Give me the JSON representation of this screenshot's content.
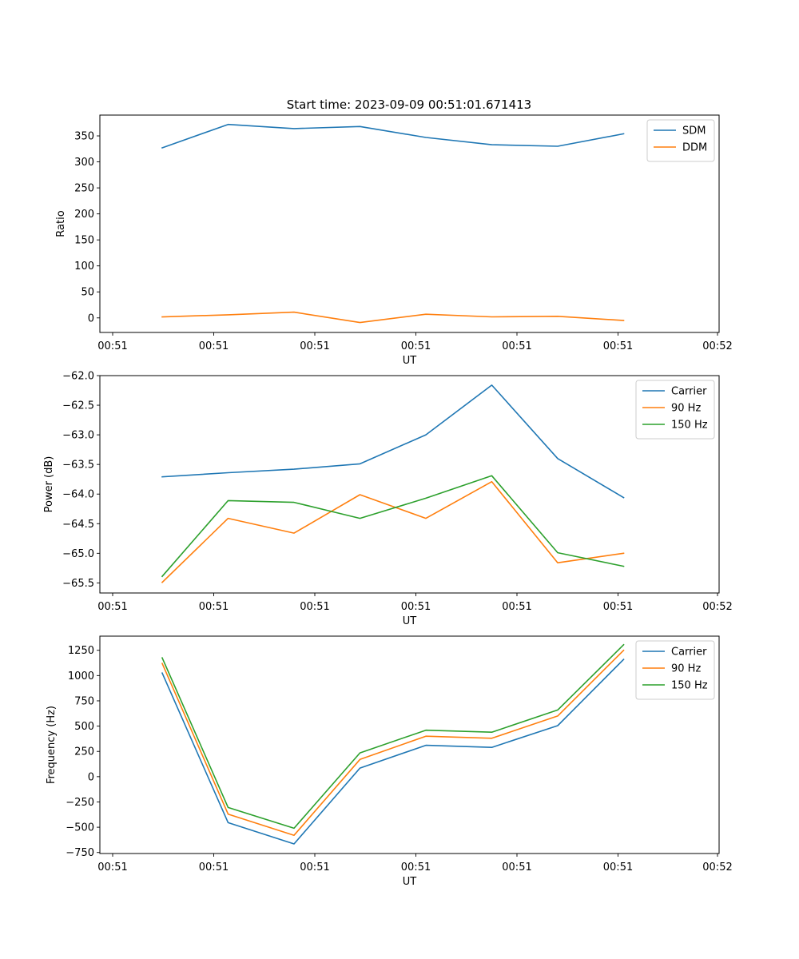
{
  "figure_title": "Start time: 2023-09-09 00:51:01.671413",
  "colors": {
    "blue": "#1f77b4",
    "orange": "#ff7f0e",
    "green": "#2ca02c"
  },
  "chart_data": [
    {
      "type": "line",
      "title": "Start time: 2023-09-09 00:51:01.671413",
      "xlabel": "UT",
      "ylabel": "Ratio",
      "x_index": [
        1,
        2,
        3,
        4,
        5,
        6,
        7,
        8
      ],
      "x_tick_labels": [
        "00:51",
        "00:51",
        "00:51",
        "00:51",
        "00:51",
        "00:51",
        "00:52"
      ],
      "y_ticks": [
        0,
        50,
        100,
        150,
        200,
        250,
        300,
        350
      ],
      "y_tick_labels": [
        "0",
        "50",
        "100",
        "150",
        "200",
        "250",
        "300",
        "350"
      ],
      "ylim": [
        -28,
        390
      ],
      "legend_position": "top-right",
      "series": [
        {
          "name": "SDM",
          "color": "#1f77b4",
          "values": [
            327,
            372,
            364,
            368,
            347,
            333,
            330,
            354
          ]
        },
        {
          "name": "DDM",
          "color": "#ff7f0e",
          "values": [
            2,
            6,
            11,
            -9,
            7,
            2,
            3,
            -5
          ]
        }
      ]
    },
    {
      "type": "line",
      "xlabel": "UT",
      "ylabel": "Power (dB)",
      "x_index": [
        1,
        2,
        3,
        4,
        5,
        6,
        7,
        8
      ],
      "x_tick_labels": [
        "00:51",
        "00:51",
        "00:51",
        "00:51",
        "00:51",
        "00:51",
        "00:52"
      ],
      "y_ticks": [
        -65.5,
        -65.0,
        -64.5,
        -64.0,
        -63.5,
        -63.0,
        -62.5,
        -62.0
      ],
      "y_tick_labels": [
        "−65.5",
        "−65.0",
        "−64.5",
        "−64.0",
        "−63.5",
        "−63.0",
        "−62.5",
        "−62.0"
      ],
      "ylim": [
        -65.67,
        -62.0
      ],
      "legend_position": "top-right",
      "series": [
        {
          "name": "Carrier",
          "color": "#1f77b4",
          "values": [
            -63.71,
            -63.64,
            -63.58,
            -63.49,
            -63.0,
            -62.16,
            -63.4,
            -64.06
          ]
        },
        {
          "name": "90 Hz",
          "color": "#ff7f0e",
          "values": [
            -65.49,
            -64.41,
            -64.66,
            -64.01,
            -64.41,
            -63.79,
            -65.16,
            -65.0
          ]
        },
        {
          "name": "150 Hz",
          "color": "#2ca02c",
          "values": [
            -65.39,
            -64.11,
            -64.14,
            -64.41,
            -64.07,
            -63.69,
            -64.99,
            -65.22
          ]
        }
      ]
    },
    {
      "type": "line",
      "xlabel": "UT",
      "ylabel": "Frequency (Hz)",
      "x_index": [
        1,
        2,
        3,
        4,
        5,
        6,
        7,
        8
      ],
      "x_tick_labels": [
        "00:51",
        "00:51",
        "00:51",
        "00:51",
        "00:51",
        "00:51",
        "00:52"
      ],
      "y_ticks": [
        -750,
        -500,
        -250,
        0,
        250,
        500,
        750,
        1000,
        1250
      ],
      "y_tick_labels": [
        "−750",
        "−500",
        "−250",
        "0",
        "250",
        "500",
        "750",
        "1000",
        "1250"
      ],
      "ylim": [
        -760,
        1390
      ],
      "legend_position": "top-right",
      "series": [
        {
          "name": "Carrier",
          "color": "#1f77b4",
          "values": [
            1025,
            -455,
            -665,
            85,
            310,
            290,
            505,
            1160
          ]
        },
        {
          "name": "90 Hz",
          "color": "#ff7f0e",
          "values": [
            1120,
            -370,
            -580,
            170,
            400,
            380,
            600,
            1250
          ]
        },
        {
          "name": "150 Hz",
          "color": "#2ca02c",
          "values": [
            1175,
            -305,
            -510,
            235,
            460,
            440,
            660,
            1305
          ]
        }
      ]
    }
  ]
}
